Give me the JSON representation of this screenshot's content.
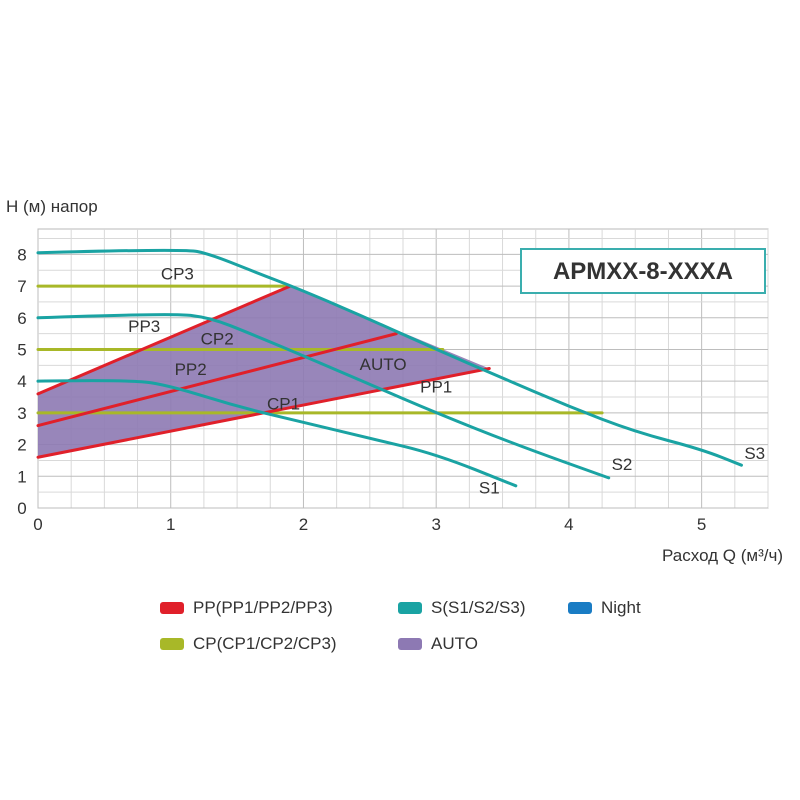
{
  "chart_data": {
    "type": "line",
    "model_label": "APMXX-8-XXXA",
    "ylabel": "H (м) напор",
    "xlabel": "Расход Q (м³/ч)",
    "xlim": [
      0,
      5.5
    ],
    "ylim": [
      0,
      8.8
    ],
    "x_ticks": [
      "0",
      "1",
      "2",
      "3",
      "4",
      "5"
    ],
    "y_ticks": [
      "0",
      "1",
      "2",
      "3",
      "4",
      "5",
      "6",
      "7",
      "8"
    ],
    "grid": true,
    "legend_position": "bottom",
    "colors": {
      "pp": "#e0202a",
      "s": "#1aa3a3",
      "night": "#1a7cc4",
      "cp": "#a8b828",
      "auto": "#8d79b3"
    },
    "auto_region": {
      "name": "AUTO",
      "points": [
        [
          0,
          1.6
        ],
        [
          3.4,
          4.4
        ],
        [
          1.9,
          7.0
        ],
        [
          0,
          3.6
        ]
      ]
    },
    "series": [
      {
        "name": "S1",
        "group": "s",
        "points": [
          [
            0,
            4.0
          ],
          [
            0.7,
            4.05
          ],
          [
            1.0,
            3.85
          ],
          [
            1.5,
            3.2
          ],
          [
            2.0,
            2.7
          ],
          [
            2.5,
            2.2
          ],
          [
            3.0,
            1.7
          ],
          [
            3.6,
            0.7
          ]
        ]
      },
      {
        "name": "S2",
        "group": "s",
        "points": [
          [
            0,
            6.0
          ],
          [
            1.0,
            6.15
          ],
          [
            1.3,
            6.0
          ],
          [
            1.6,
            5.5
          ],
          [
            2.0,
            4.8
          ],
          [
            2.5,
            3.9
          ],
          [
            3.0,
            3.0
          ],
          [
            3.6,
            2.0
          ],
          [
            4.3,
            0.95
          ]
        ]
      },
      {
        "name": "S3",
        "group": "s",
        "points": [
          [
            0,
            8.05
          ],
          [
            1.1,
            8.18
          ],
          [
            1.3,
            8.0
          ],
          [
            1.6,
            7.5
          ],
          [
            2.0,
            6.85
          ],
          [
            2.5,
            5.95
          ],
          [
            3.0,
            5.0
          ],
          [
            3.5,
            4.1
          ],
          [
            4.0,
            3.2
          ],
          [
            4.5,
            2.4
          ],
          [
            5.0,
            1.85
          ],
          [
            5.3,
            1.35
          ]
        ]
      },
      {
        "name": "PP1",
        "group": "pp",
        "points": [
          [
            0,
            1.6
          ],
          [
            3.4,
            4.4
          ]
        ]
      },
      {
        "name": "PP2",
        "group": "pp",
        "points": [
          [
            0,
            2.6
          ],
          [
            2.7,
            5.5
          ]
        ]
      },
      {
        "name": "PP3",
        "group": "pp",
        "points": [
          [
            0,
            3.6
          ],
          [
            1.9,
            7.0
          ]
        ]
      },
      {
        "name": "CP1",
        "group": "cp",
        "points": [
          [
            0,
            3.0
          ],
          [
            4.25,
            3.0
          ]
        ]
      },
      {
        "name": "CP2",
        "group": "cp",
        "points": [
          [
            0,
            5.0
          ],
          [
            3.05,
            5.0
          ]
        ]
      },
      {
        "name": "CP3",
        "group": "cp",
        "points": [
          [
            0,
            7.0
          ],
          [
            1.9,
            7.0
          ]
        ]
      }
    ],
    "annotations": [
      {
        "text": "CP3",
        "x": 1.05,
        "y": 7.2
      },
      {
        "text": "PP3",
        "x": 0.8,
        "y": 5.55
      },
      {
        "text": "CP2",
        "x": 1.35,
        "y": 5.15
      },
      {
        "text": "PP2",
        "x": 1.15,
        "y": 4.2
      },
      {
        "text": "AUTO",
        "x": 2.6,
        "y": 4.35
      },
      {
        "text": "PP1",
        "x": 3.0,
        "y": 3.65
      },
      {
        "text": "CP1",
        "x": 1.85,
        "y": 3.1
      },
      {
        "text": "S1",
        "x": 3.4,
        "y": 0.45
      },
      {
        "text": "S2",
        "x": 4.4,
        "y": 1.2
      },
      {
        "text": "S3",
        "x": 5.4,
        "y": 1.55
      }
    ]
  },
  "legend": [
    {
      "label": "PP(PP1/PP2/PP3)",
      "group": "pp"
    },
    {
      "label": "S(S1/S2/S3)",
      "group": "s"
    },
    {
      "label": "Night",
      "group": "night"
    },
    {
      "label": "CP(CP1/CP2/CP3)",
      "group": "cp"
    },
    {
      "label": "AUTO",
      "group": "auto"
    }
  ]
}
